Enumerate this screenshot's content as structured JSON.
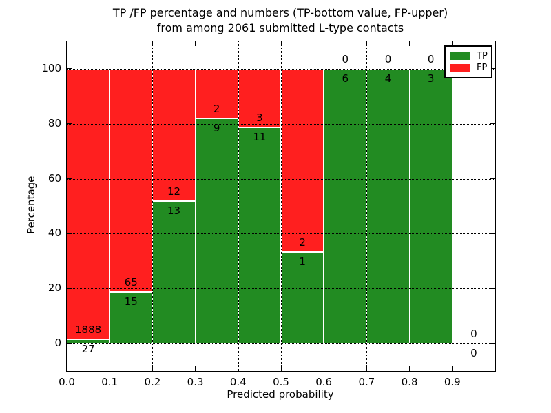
{
  "chart_data": {
    "type": "bar",
    "stacked": true,
    "title_line1": "TP /FP percentage and numbers (TP-bottom value, FP-upper)",
    "title_line2": "from among 2061 submitted L-type contacts",
    "xlabel": "Predicted probability",
    "ylabel": "Percentage",
    "total_contacts": 2061,
    "xlim": [
      0.0,
      1.0
    ],
    "ylim": [
      -10,
      110
    ],
    "xtick_values": [
      0.0,
      0.1,
      0.2,
      0.3,
      0.4,
      0.5,
      0.6,
      0.7,
      0.8,
      0.9
    ],
    "xtick_labels": [
      "0.0",
      "0.1",
      "0.2",
      "0.3",
      "0.4",
      "0.5",
      "0.6",
      "0.7",
      "0.8",
      "0.9"
    ],
    "ytick_values": [
      0,
      20,
      40,
      60,
      80,
      100
    ],
    "ytick_labels": [
      "0",
      "20",
      "40",
      "60",
      "80",
      "100"
    ],
    "grid": "dotted, on both axes at every tick",
    "legend_position": "upper right",
    "colors": {
      "tp": "#228b22",
      "fp": "#ff1f1f",
      "bar_edge": "#ffffff",
      "grid": "#000000",
      "text": "#000000",
      "background": "#ffffff"
    },
    "legend": [
      {
        "label": "TP",
        "color": "#228b22"
      },
      {
        "label": "FP",
        "color": "#ff1f1f"
      }
    ],
    "bins": [
      {
        "range": [
          0.0,
          0.1
        ],
        "tp": 27,
        "fp": 1888,
        "tp_pct": 1.41,
        "total_pct": 100
      },
      {
        "range": [
          0.1,
          0.2
        ],
        "tp": 15,
        "fp": 65,
        "tp_pct": 18.75,
        "total_pct": 100
      },
      {
        "range": [
          0.2,
          0.3
        ],
        "tp": 13,
        "fp": 12,
        "tp_pct": 52.0,
        "total_pct": 100
      },
      {
        "range": [
          0.3,
          0.4
        ],
        "tp": 9,
        "fp": 2,
        "tp_pct": 81.82,
        "total_pct": 100
      },
      {
        "range": [
          0.4,
          0.5
        ],
        "tp": 11,
        "fp": 3,
        "tp_pct": 78.57,
        "total_pct": 100
      },
      {
        "range": [
          0.5,
          0.6
        ],
        "tp": 1,
        "fp": 2,
        "tp_pct": 33.33,
        "total_pct": 100
      },
      {
        "range": [
          0.6,
          0.7
        ],
        "tp": 6,
        "fp": 0,
        "tp_pct": 100,
        "total_pct": 100
      },
      {
        "range": [
          0.7,
          0.8
        ],
        "tp": 4,
        "fp": 0,
        "tp_pct": 100,
        "total_pct": 100
      },
      {
        "range": [
          0.8,
          0.9
        ],
        "tp": 3,
        "fp": 0,
        "tp_pct": 100,
        "total_pct": 100
      },
      {
        "range": [
          0.9,
          1.0
        ],
        "tp": 0,
        "fp": 0,
        "tp_pct": 0,
        "total_pct": 0
      }
    ]
  }
}
